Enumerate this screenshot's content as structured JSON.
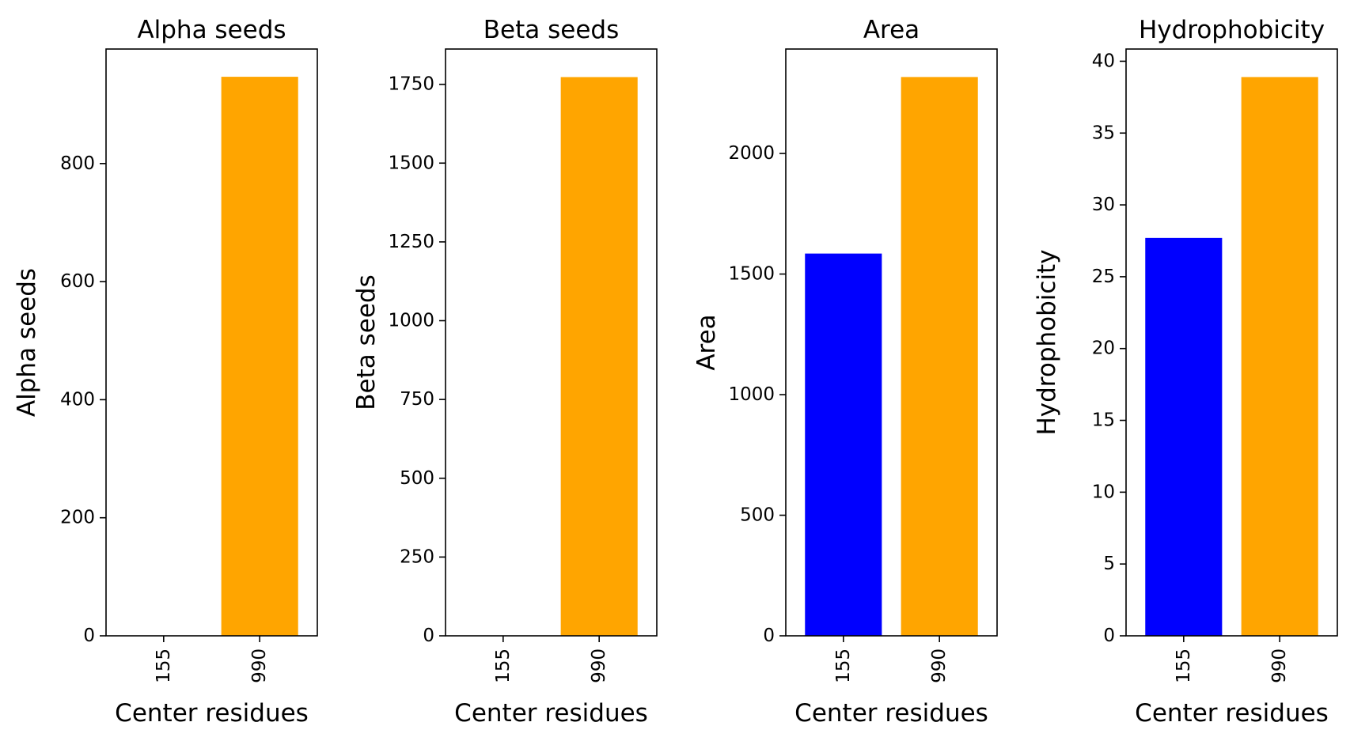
{
  "chart_data": [
    {
      "type": "bar",
      "title": "Alpha seeds",
      "xlabel": "Center residues",
      "ylabel": "Alpha seeds",
      "categories": [
        "155",
        "990"
      ],
      "values": [
        0,
        947
      ],
      "colors": [
        "#0000ff",
        "#ffa500"
      ],
      "ylim": [
        0,
        994
      ],
      "yticks": [
        0,
        200,
        400,
        600,
        800
      ],
      "grid": false
    },
    {
      "type": "bar",
      "title": "Beta seeds",
      "xlabel": "Center residues",
      "ylabel": "Beta seeds",
      "categories": [
        "155",
        "990"
      ],
      "values": [
        0,
        1773
      ],
      "colors": [
        "#0000ff",
        "#ffa500"
      ],
      "ylim": [
        0,
        1862
      ],
      "yticks": [
        0,
        250,
        500,
        750,
        1000,
        1250,
        1500,
        1750
      ],
      "grid": false
    },
    {
      "type": "bar",
      "title": "Area",
      "xlabel": "Center residues",
      "ylabel": "Area",
      "categories": [
        "155",
        "990"
      ],
      "values": [
        1585,
        2317
      ],
      "colors": [
        "#0000ff",
        "#ffa500"
      ],
      "ylim": [
        0,
        2433
      ],
      "yticks": [
        0,
        500,
        1000,
        1500,
        2000
      ],
      "grid": false
    },
    {
      "type": "bar",
      "title": "Hydrophobicity",
      "xlabel": "Center residues",
      "ylabel": "Hydrophobicity",
      "categories": [
        "155",
        "990"
      ],
      "values": [
        27.7,
        38.9
      ],
      "colors": [
        "#0000ff",
        "#ffa500"
      ],
      "ylim": [
        0,
        40.85
      ],
      "yticks": [
        0,
        5,
        10,
        15,
        20,
        25,
        30,
        35,
        40
      ],
      "grid": false
    }
  ]
}
